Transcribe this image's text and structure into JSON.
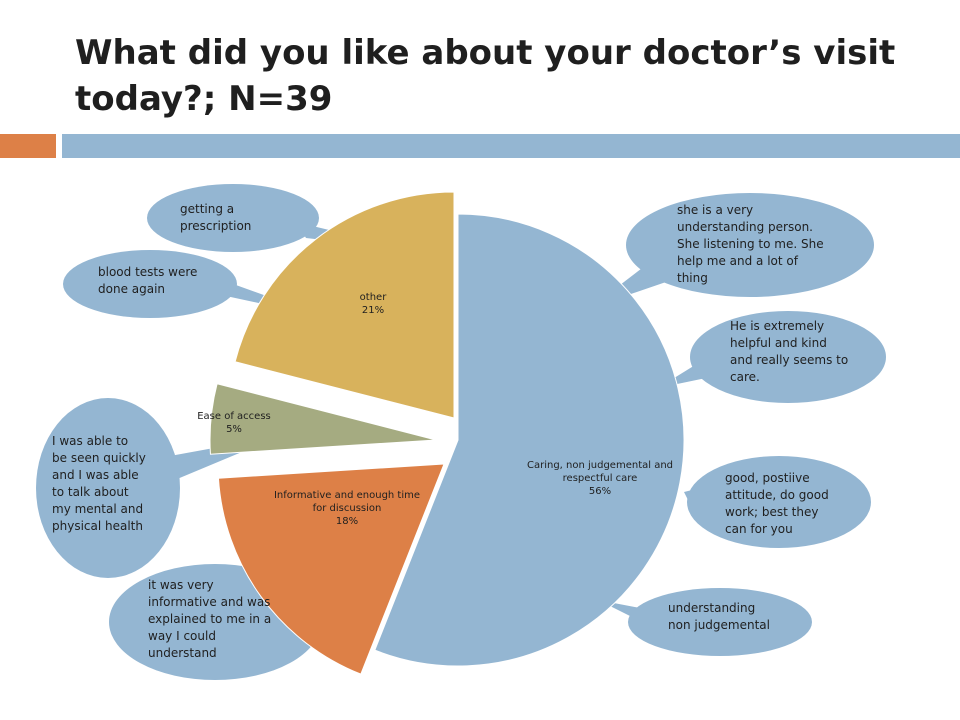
{
  "title": "What did you like about your doctor’s visit today?; N=39",
  "colors": {
    "accent_orange": "#dd8047",
    "accent_blue": "#94b6d2",
    "caring": "#94b6d2",
    "informative": "#dd8047",
    "ease": "#a5ab81",
    "other": "#d8b25c"
  },
  "chart_data": {
    "type": "pie",
    "title": "What did you like about your doctor’s visit today?; N=39",
    "slices": [
      {
        "label": "Caring, non judgemental and respectful care",
        "value": 56,
        "value_label": "56%",
        "color": "#94b6d2"
      },
      {
        "label": "Informative and enough time for discussion",
        "value": 18,
        "value_label": "18%",
        "color": "#dd8047"
      },
      {
        "label": "Ease of access",
        "value": 5,
        "value_label": "5%",
        "color": "#a5ab81"
      },
      {
        "label": "other",
        "value": 21,
        "value_label": "21%",
        "color": "#d8b25c"
      }
    ],
    "exploded": true,
    "annotations": [
      {
        "slice": "other",
        "lines": [
          "getting a",
          "prescription"
        ]
      },
      {
        "slice": "other",
        "lines": [
          "blood tests were",
          "done again"
        ]
      },
      {
        "slice": "Ease of access",
        "lines": [
          "I was able to",
          "be seen quickly",
          "and I was able",
          "to talk about",
          "my mental and",
          "physical health"
        ]
      },
      {
        "slice": "Informative and enough time for discussion",
        "lines": [
          "it was very",
          "informative and was",
          "explained to me in a",
          "way I could",
          "understand"
        ]
      },
      {
        "slice": "Caring, non judgemental and respectful care",
        "lines": [
          "she is a very",
          "understanding person.",
          "She listening to me. She",
          "help me and a lot of",
          "thing"
        ]
      },
      {
        "slice": "Caring, non judgemental and respectful care",
        "lines": [
          "He is extremely",
          "helpful and kind",
          "and really seems to",
          "care."
        ]
      },
      {
        "slice": "Caring, non judgemental and respectful care",
        "lines": [
          "good, postiive",
          "attitude, do good",
          "work; best they",
          "can for you"
        ]
      },
      {
        "slice": "Caring, non judgemental and respectful care",
        "lines": [
          "understanding",
          "non judgemental"
        ]
      }
    ]
  }
}
